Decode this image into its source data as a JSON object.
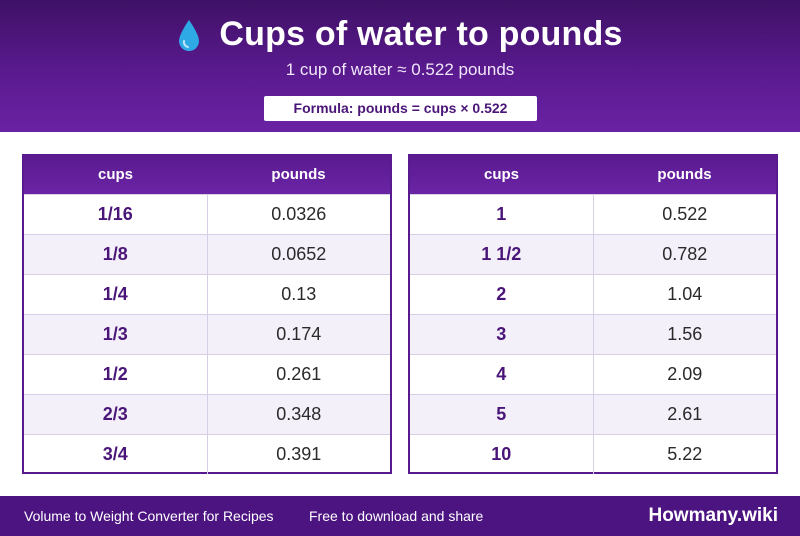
{
  "header": {
    "icon": "water-drop-icon",
    "title": "Cups of water to pounds",
    "subtitle": "1 cup of water ≈ 0.522 pounds",
    "formula": "Formula: pounds = cups × 0.522"
  },
  "tables": {
    "left": {
      "col_cups": "cups",
      "col_pounds": "pounds",
      "rows": [
        {
          "cups": "1/16",
          "pounds": "0.0326"
        },
        {
          "cups": "1/8",
          "pounds": "0.0652"
        },
        {
          "cups": "1/4",
          "pounds": "0.13"
        },
        {
          "cups": "1/3",
          "pounds": "0.174"
        },
        {
          "cups": "1/2",
          "pounds": "0.261"
        },
        {
          "cups": "2/3",
          "pounds": "0.348"
        },
        {
          "cups": "3/4",
          "pounds": "0.391"
        }
      ]
    },
    "right": {
      "col_cups": "cups",
      "col_pounds": "pounds",
      "rows": [
        {
          "cups": "1",
          "pounds": "0.522"
        },
        {
          "cups": "1 1/2",
          "pounds": "0.782"
        },
        {
          "cups": "2",
          "pounds": "1.04"
        },
        {
          "cups": "3",
          "pounds": "1.56"
        },
        {
          "cups": "4",
          "pounds": "2.09"
        },
        {
          "cups": "5",
          "pounds": "2.61"
        },
        {
          "cups": "10",
          "pounds": "5.22"
        }
      ]
    }
  },
  "footer": {
    "left_text": "Volume to Weight Converter for Recipes",
    "middle_text": "Free to download and share",
    "brand": "Howmany.wiki"
  },
  "colors": {
    "accent": "#5a1a8f",
    "drop": "#2fa8e6"
  }
}
